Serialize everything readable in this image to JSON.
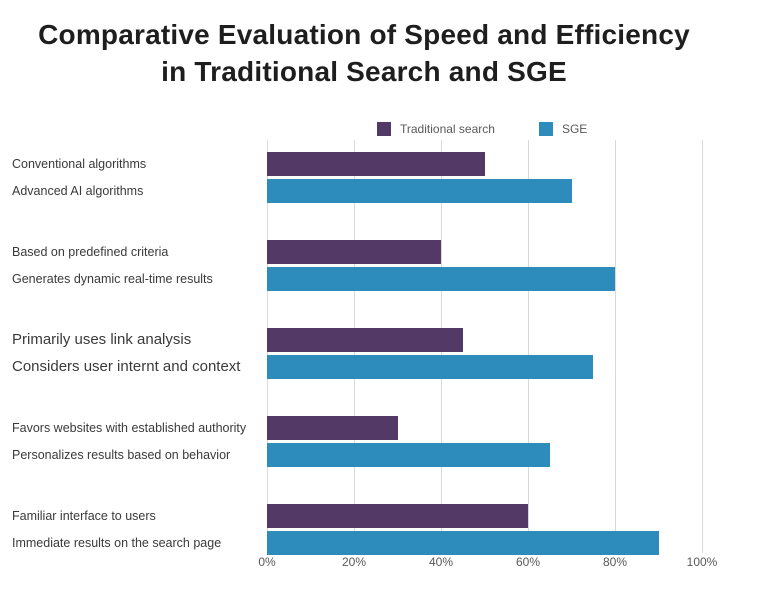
{
  "title": {
    "line1": "Comparative Evaluation of Speed and Efficiency",
    "line2": "in Traditional Search and SGE"
  },
  "legend": {
    "items": [
      {
        "label": "Traditional search",
        "color": "#533A66"
      },
      {
        "label": "SGE",
        "color": "#2E8CBC"
      }
    ]
  },
  "chart_data": {
    "type": "bar",
    "orientation": "horizontal",
    "title": "Comparative Evaluation of Speed and Efficiency in Traditional Search and SGE",
    "xlabel": "",
    "ylabel": "",
    "x_ticks": [
      "0%",
      "20%",
      "40%",
      "60%",
      "80%",
      "100%"
    ],
    "x_range": [
      0,
      100
    ],
    "grid": true,
    "legend_position": "top-center",
    "series": [
      {
        "name": "Traditional search",
        "color": "#533A66"
      },
      {
        "name": "SGE",
        "color": "#2E8CBC"
      }
    ],
    "rows": [
      {
        "group": 1,
        "series": "Traditional search",
        "label": "Conventional algorithms",
        "value": 50,
        "emphasis": false
      },
      {
        "group": 1,
        "series": "SGE",
        "label": "Advanced AI algorithms",
        "value": 70,
        "emphasis": false
      },
      {
        "group": 2,
        "series": "Traditional search",
        "label": "Based on predefined criteria",
        "value": 40,
        "emphasis": false
      },
      {
        "group": 2,
        "series": "SGE",
        "label": "Generates dynamic real-time results",
        "value": 80,
        "emphasis": false
      },
      {
        "group": 3,
        "series": "Traditional search",
        "label": "Primarily uses link analysis",
        "value": 45,
        "emphasis": true
      },
      {
        "group": 3,
        "series": "SGE",
        "label": "Considers user internt and context",
        "value": 75,
        "emphasis": true
      },
      {
        "group": 4,
        "series": "Traditional search",
        "label": "Favors websites with established authority",
        "value": 30,
        "emphasis": false
      },
      {
        "group": 4,
        "series": "SGE",
        "label": "Personalizes results based on behavior",
        "value": 65,
        "emphasis": false
      },
      {
        "group": 5,
        "series": "Traditional search",
        "label": "Familiar interface to users",
        "value": 60,
        "emphasis": false
      },
      {
        "group": 5,
        "series": "SGE",
        "label": "Immediate results on the search page",
        "value": 90,
        "emphasis": false
      }
    ]
  },
  "colors": {
    "traditional": "#533A66",
    "sge": "#2E8CBC",
    "gridline": "#D9D9D9",
    "axis_text": "#595959",
    "label_text": "#3A3A3A",
    "title_text": "#1E1E1E"
  }
}
